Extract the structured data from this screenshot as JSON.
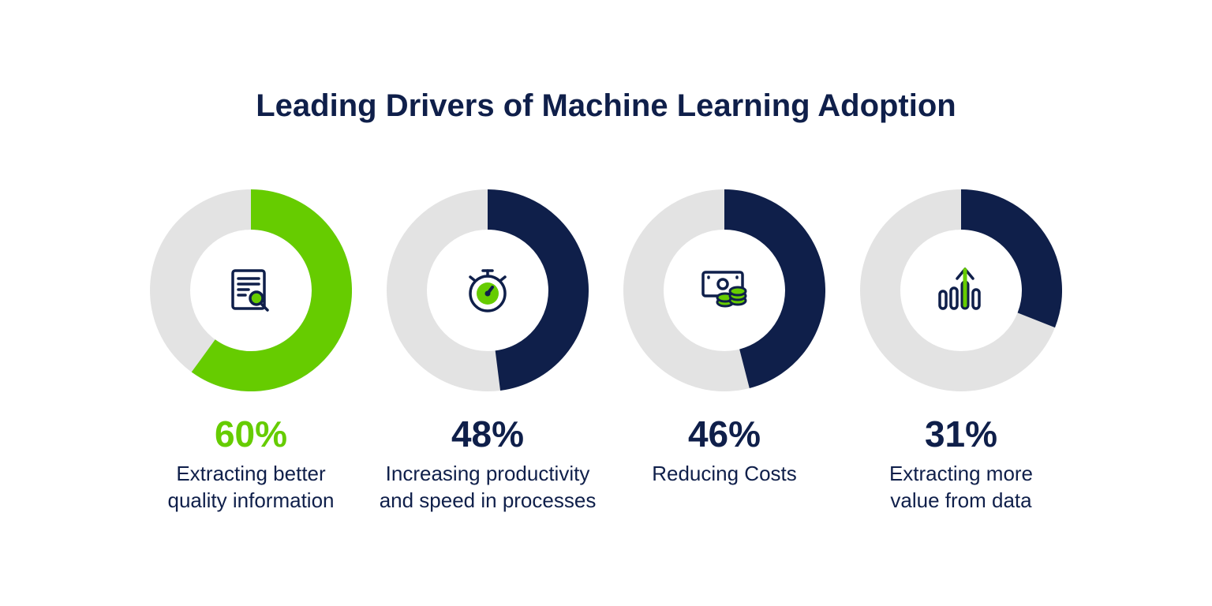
{
  "title": "Leading Drivers of Machine Learning Adoption",
  "colors": {
    "navy": "#0f1f4a",
    "green": "#66cc00",
    "track": "#e3e3e3",
    "background": "#ffffff"
  },
  "chart_data": [
    {
      "type": "pie",
      "title": "Leading Drivers of Machine Learning Adoption",
      "label": "60%",
      "value": 60,
      "description_lines": [
        "Extracting better",
        "quality information"
      ],
      "color": "#66cc00",
      "icon": "document-search-icon"
    },
    {
      "type": "pie",
      "label": "48%",
      "value": 48,
      "description_lines": [
        "Increasing productivity",
        "and speed in processes"
      ],
      "color": "#0f1f4a",
      "icon": "stopwatch-icon"
    },
    {
      "type": "pie",
      "label": "46%",
      "value": 46,
      "description_lines": [
        "Reducing Costs"
      ],
      "color": "#0f1f4a",
      "icon": "money-coins-icon"
    },
    {
      "type": "pie",
      "label": "31%",
      "value": 31,
      "description_lines": [
        "Extracting more",
        "value from data"
      ],
      "color": "#0f1f4a",
      "icon": "growth-bars-icon"
    }
  ]
}
